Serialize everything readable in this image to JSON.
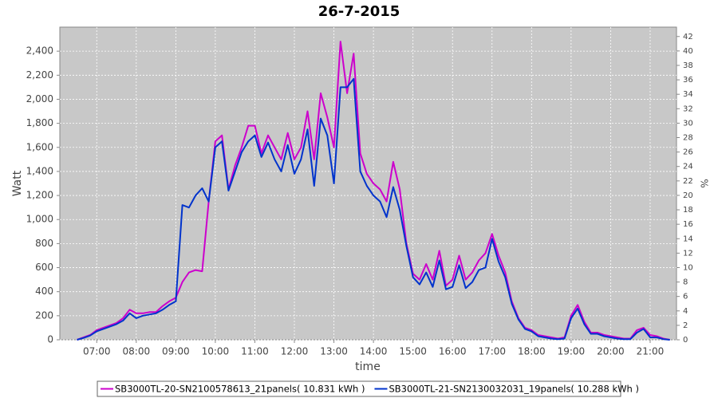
{
  "chart_data": {
    "type": "line",
    "title": "26-7-2015",
    "x_label": "time",
    "y_label": "Watt",
    "y2_label": "%",
    "x": [
      "06:30",
      "06:40",
      "06:50",
      "07:00",
      "07:10",
      "07:20",
      "07:30",
      "07:40",
      "07:50",
      "08:00",
      "08:10",
      "08:20",
      "08:30",
      "08:40",
      "08:50",
      "09:00",
      "09:10",
      "09:20",
      "09:30",
      "09:40",
      "09:50",
      "10:00",
      "10:10",
      "10:20",
      "10:30",
      "10:40",
      "10:50",
      "11:00",
      "11:10",
      "11:20",
      "11:30",
      "11:40",
      "11:50",
      "12:00",
      "12:10",
      "12:20",
      "12:30",
      "12:40",
      "12:50",
      "13:00",
      "13:10",
      "13:20",
      "13:30",
      "13:40",
      "13:50",
      "14:00",
      "14:10",
      "14:20",
      "14:30",
      "14:40",
      "14:50",
      "15:00",
      "15:10",
      "15:20",
      "15:30",
      "15:40",
      "15:50",
      "16:00",
      "16:10",
      "16:20",
      "16:30",
      "16:40",
      "16:50",
      "17:00",
      "17:10",
      "17:20",
      "17:30",
      "17:40",
      "17:50",
      "18:00",
      "18:10",
      "18:20",
      "18:30",
      "18:40",
      "18:50",
      "19:00",
      "19:10",
      "19:20",
      "19:30",
      "19:40",
      "19:50",
      "20:00",
      "20:10",
      "20:20",
      "20:30",
      "20:40",
      "20:50",
      "21:00",
      "21:10",
      "21:20",
      "21:30"
    ],
    "series": [
      {
        "name": "SB3000TL-20-SN2100578613_21panels( 10.831 kWh )",
        "color": "#cc00cc",
        "values": [
          0,
          20,
          40,
          80,
          100,
          120,
          140,
          180,
          250,
          220,
          220,
          230,
          230,
          280,
          320,
          350,
          480,
          560,
          580,
          570,
          1150,
          1650,
          1700,
          1250,
          1450,
          1600,
          1780,
          1780,
          1550,
          1700,
          1600,
          1500,
          1720,
          1500,
          1600,
          1900,
          1500,
          2050,
          1850,
          1600,
          2480,
          2050,
          2380,
          1550,
          1380,
          1300,
          1250,
          1150,
          1480,
          1250,
          800,
          550,
          500,
          630,
          500,
          740,
          450,
          500,
          700,
          500,
          560,
          660,
          720,
          880,
          700,
          560,
          320,
          180,
          100,
          80,
          40,
          30,
          20,
          10,
          20,
          200,
          290,
          150,
          60,
          60,
          40,
          30,
          20,
          10,
          10,
          80,
          100,
          40,
          30,
          10,
          0
        ]
      },
      {
        "name": "SB3000TL-21-SN2130032031_19panels( 10.288 kWh )",
        "color": "#0033cc",
        "values": [
          0,
          15,
          35,
          70,
          90,
          110,
          130,
          160,
          220,
          180,
          200,
          210,
          220,
          250,
          290,
          320,
          1120,
          1100,
          1200,
          1260,
          1150,
          1600,
          1650,
          1240,
          1400,
          1560,
          1650,
          1700,
          1520,
          1640,
          1500,
          1400,
          1620,
          1380,
          1500,
          1750,
          1280,
          1840,
          1700,
          1300,
          2100,
          2100,
          2170,
          1400,
          1280,
          1200,
          1150,
          1020,
          1270,
          1080,
          780,
          520,
          460,
          560,
          440,
          660,
          420,
          440,
          620,
          430,
          480,
          580,
          600,
          840,
          650,
          520,
          300,
          170,
          90,
          70,
          30,
          20,
          10,
          5,
          10,
          180,
          260,
          130,
          50,
          50,
          30,
          20,
          10,
          5,
          5,
          60,
          90,
          20,
          20,
          5,
          0
        ]
      }
    ],
    "xlim": [
      "06:04",
      "21:40"
    ],
    "xticks": [
      "07:00",
      "08:00",
      "09:00",
      "10:00",
      "11:00",
      "12:00",
      "13:00",
      "14:00",
      "15:00",
      "16:00",
      "17:00",
      "18:00",
      "19:00",
      "20:00",
      "21:00"
    ],
    "ylim": [
      0,
      2600
    ],
    "yticks": [
      0,
      200,
      400,
      600,
      800,
      {
        "value": 1000,
        "label": "1,000"
      },
      {
        "value": 1200,
        "label": "1,200"
      },
      {
        "value": 1400,
        "label": "1,400"
      },
      {
        "value": 1600,
        "label": "1,600"
      },
      {
        "value": 1800,
        "label": "1,800"
      },
      {
        "value": 2000,
        "label": "2,000"
      },
      {
        "value": 2200,
        "label": "2,200"
      },
      {
        "value": 2400,
        "label": "2,400"
      }
    ],
    "y2lim": [
      0,
      43.3
    ],
    "y2ticks": [
      0,
      2,
      4,
      6,
      8,
      10,
      12,
      14,
      16,
      18,
      20,
      22,
      24,
      26,
      28,
      30,
      32,
      34,
      36,
      38,
      40,
      42
    ],
    "grid": true,
    "legend": "bottom"
  }
}
